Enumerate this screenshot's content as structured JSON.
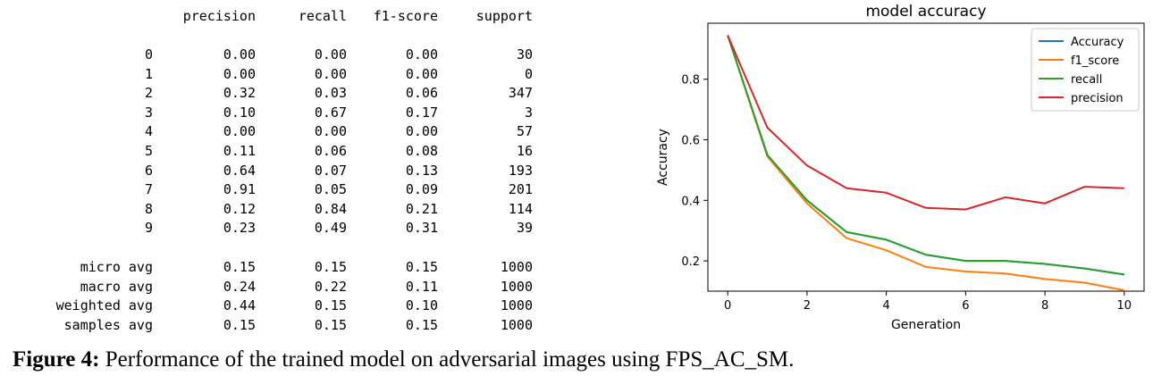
{
  "report": {
    "columns": [
      "precision",
      "recall",
      "f1-score",
      "support"
    ],
    "rows": [
      {
        "label": "0",
        "precision": "0.00",
        "recall": "0.00",
        "f1": "0.00",
        "support": "30"
      },
      {
        "label": "1",
        "precision": "0.00",
        "recall": "0.00",
        "f1": "0.00",
        "support": "0"
      },
      {
        "label": "2",
        "precision": "0.32",
        "recall": "0.03",
        "f1": "0.06",
        "support": "347"
      },
      {
        "label": "3",
        "precision": "0.10",
        "recall": "0.67",
        "f1": "0.17",
        "support": "3"
      },
      {
        "label": "4",
        "precision": "0.00",
        "recall": "0.00",
        "f1": "0.00",
        "support": "57"
      },
      {
        "label": "5",
        "precision": "0.11",
        "recall": "0.06",
        "f1": "0.08",
        "support": "16"
      },
      {
        "label": "6",
        "precision": "0.64",
        "recall": "0.07",
        "f1": "0.13",
        "support": "193"
      },
      {
        "label": "7",
        "precision": "0.91",
        "recall": "0.05",
        "f1": "0.09",
        "support": "201"
      },
      {
        "label": "8",
        "precision": "0.12",
        "recall": "0.84",
        "f1": "0.21",
        "support": "114"
      },
      {
        "label": "9",
        "precision": "0.23",
        "recall": "0.49",
        "f1": "0.31",
        "support": "39"
      }
    ],
    "averages": [
      {
        "label": "micro avg",
        "precision": "0.15",
        "recall": "0.15",
        "f1": "0.15",
        "support": "1000"
      },
      {
        "label": "macro avg",
        "precision": "0.24",
        "recall": "0.22",
        "f1": "0.11",
        "support": "1000"
      },
      {
        "label": "weighted avg",
        "precision": "0.44",
        "recall": "0.15",
        "f1": "0.10",
        "support": "1000"
      },
      {
        "label": "samples avg",
        "precision": "0.15",
        "recall": "0.15",
        "f1": "0.15",
        "support": "1000"
      }
    ]
  },
  "chart_data": {
    "type": "line",
    "title": "model accuracy",
    "xlabel": "Generation",
    "ylabel": "Accuracy",
    "x": [
      0,
      1,
      2,
      3,
      4,
      5,
      6,
      7,
      8,
      9,
      10
    ],
    "xlim": [
      -0.5,
      10.5
    ],
    "ylim": [
      0.1,
      0.985
    ],
    "xticks": [
      0,
      2,
      4,
      6,
      8,
      10
    ],
    "yticks": [
      0.2,
      0.4,
      0.6,
      0.8
    ],
    "grid": false,
    "legend_position": "top-right",
    "series": [
      {
        "name": "Accuracy",
        "color": "#1f77b4",
        "values": [
          0.945,
          0.55,
          0.4,
          0.295,
          0.27,
          0.22,
          0.2,
          0.2,
          0.19,
          0.175,
          0.155
        ]
      },
      {
        "name": "f1_score",
        "color": "#ff7f0e",
        "values": [
          0.945,
          0.545,
          0.39,
          0.275,
          0.235,
          0.18,
          0.165,
          0.158,
          0.14,
          0.128,
          0.103
        ]
      },
      {
        "name": "recall",
        "color": "#2ca02c",
        "values": [
          0.945,
          0.55,
          0.4,
          0.295,
          0.27,
          0.22,
          0.2,
          0.2,
          0.19,
          0.175,
          0.155
        ]
      },
      {
        "name": "precision",
        "color": "#d62728",
        "values": [
          0.945,
          0.64,
          0.515,
          0.44,
          0.425,
          0.375,
          0.37,
          0.41,
          0.39,
          0.445,
          0.44
        ]
      }
    ]
  },
  "caption": {
    "label": "Figure 4:",
    "text": "Performance of the trained model on adversarial images using FPS_AC_SM."
  }
}
